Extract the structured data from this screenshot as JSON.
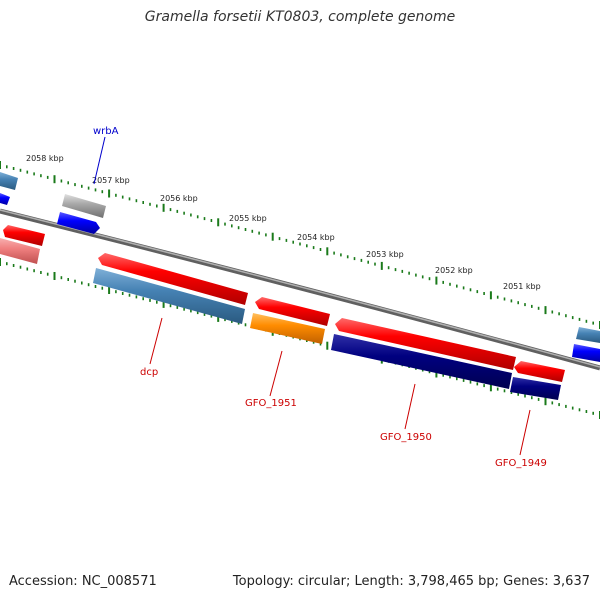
{
  "title": "Gramella forsetii KT0803, complete genome",
  "footer": {
    "accession": "Accession: NC_008571",
    "topology": "Topology: circular; Length: 3,798,465 bp; Genes: 3,637"
  },
  "scale_labels": [
    "2058 kbp",
    "2057 kbp",
    "2056 kbp",
    "2055 kbp",
    "2054 kbp",
    "2053 kbp",
    "2052 kbp",
    "2051 kbp"
  ],
  "gene_labels": [
    "wrbA",
    "dcp",
    "GFO_1951",
    "GFO_1950",
    "GFO_1949"
  ],
  "colors": {
    "backbone": "#808080",
    "forward_cds": "#ff0000",
    "forward_pale": "#f08080",
    "reverse_steel": "#4682b4",
    "reverse_blue": "#0000ff",
    "reverse_navy": "#000080",
    "orange": "#ff8c00",
    "grey_gene": "#aaaaaa",
    "tick": "#1a7a1a",
    "label_red": "#cc0000",
    "label_blue": "#0000cc"
  }
}
